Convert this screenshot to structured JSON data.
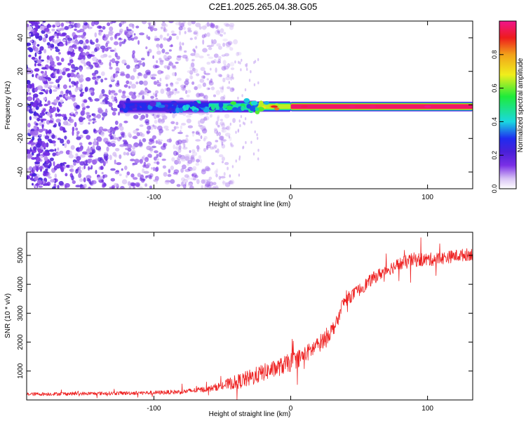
{
  "figure_title": "C2E1.2025.265.04.38.G05",
  "colors": {
    "snr_line": "#ee2222",
    "axis": "#000000",
    "background": "#ffffff",
    "colormap": [
      "#ffffff",
      "#d9c4f5",
      "#7a2fe6",
      "#4a20d8",
      "#1f2cf0",
      "#1ad8e0",
      "#1eeb3a",
      "#f0ee1c",
      "#f2a21a",
      "#ee1c1c",
      "#f0148c"
    ]
  },
  "chart_data": [
    {
      "type": "heatmap",
      "name": "spectrogram",
      "title": "",
      "xlabel": "Height of straight line (km)",
      "ylabel": "Frequency (Hz)",
      "xlim": [
        -193,
        133
      ],
      "ylim": [
        -50,
        50
      ],
      "x_ticks": [
        -100,
        0,
        100
      ],
      "y_ticks": [
        -40,
        -20,
        0,
        20,
        40
      ],
      "x_tick_labels": [
        "-100",
        "0",
        "100"
      ],
      "y_tick_labels": [
        "-40",
        "-20",
        "0",
        "20",
        "40"
      ],
      "signal_band": {
        "center_frequency_hz": -1,
        "onset_height_km": -125,
        "segments": [
          {
            "x": [
              -125,
              -60
            ],
            "amplitude": 0.3,
            "halfwidth_hz": 3.5,
            "note": "scattered noisy core"
          },
          {
            "x": [
              -60,
              -25
            ],
            "amplitude": 0.45,
            "halfwidth_hz": 3.0,
            "note": "transition"
          },
          {
            "x": [
              -25,
              0
            ],
            "amplitude": 0.65,
            "halfwidth_hz": 2.5,
            "note": "strengthening"
          },
          {
            "x": [
              0,
              133
            ],
            "amplitude": 0.97,
            "halfwidth_hz": 2.2,
            "note": "strong stable tone"
          }
        ]
      },
      "background_noise_extent_km": [
        -193,
        -45
      ],
      "colorbar": {
        "label": "Normalized spectral amplitude",
        "range": [
          0,
          1
        ],
        "ticks": [
          0.0,
          0.2,
          0.4,
          0.6,
          0.8
        ],
        "tick_labels": [
          "0.0",
          "0.2",
          "0.4",
          "0.6",
          "0.8"
        ]
      }
    },
    {
      "type": "line",
      "name": "snr",
      "title": "",
      "xlabel": "Height of straight line (km)",
      "ylabel": "SNR (10 * v/v)",
      "xlim": [
        -193,
        133
      ],
      "ylim": [
        0,
        5800
      ],
      "x_ticks": [
        -100,
        0,
        100
      ],
      "y_ticks": [
        1000,
        2000,
        3000,
        4000,
        5000
      ],
      "x_tick_labels": [
        "-100",
        "0",
        "100"
      ],
      "y_tick_labels": [
        "1000",
        "2000",
        "3000",
        "4000",
        "5000"
      ],
      "series": [
        {
          "name": "SNR",
          "trend_x": [
            -193,
            -150,
            -100,
            -80,
            -60,
            -50,
            -40,
            -30,
            -20,
            -10,
            0,
            10,
            20,
            30,
            35,
            37,
            40,
            50,
            60,
            70,
            80,
            90,
            100,
            110,
            120,
            133
          ],
          "trend_y": [
            200,
            220,
            250,
            280,
            380,
            500,
            620,
            750,
            950,
            1100,
            1300,
            1550,
            1900,
            2400,
            2800,
            3250,
            3450,
            3800,
            4200,
            4500,
            4700,
            4850,
            4850,
            4900,
            4980,
            5050
          ],
          "noise_amplitude": [
            60,
            60,
            70,
            80,
            100,
            150,
            250,
            300,
            300,
            300,
            330,
            300,
            300,
            280,
            200,
            200,
            220,
            220,
            220,
            220,
            240,
            250,
            240,
            220,
            220,
            220
          ]
        }
      ]
    }
  ]
}
